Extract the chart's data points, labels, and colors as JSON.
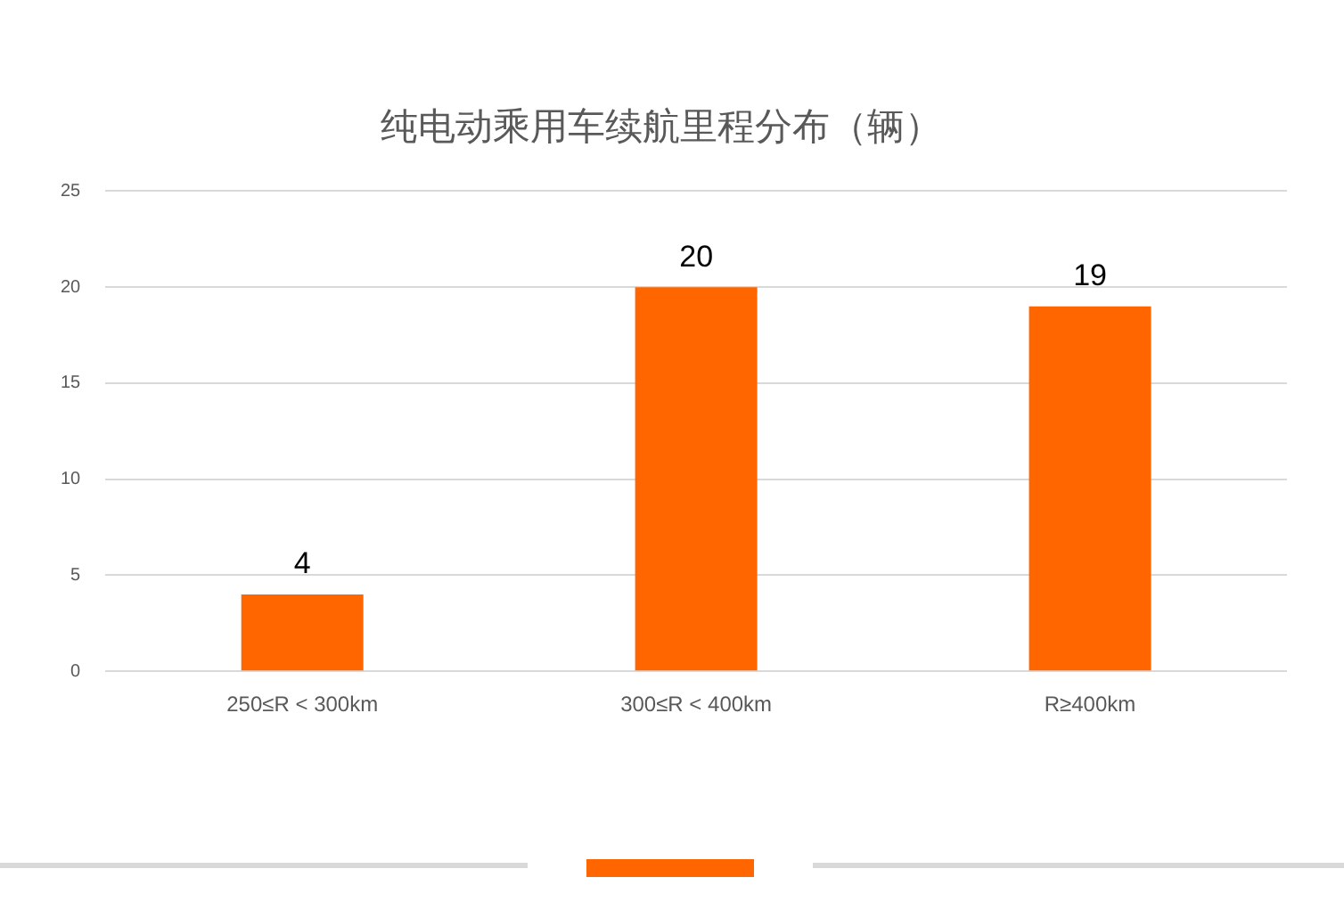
{
  "chart_data": {
    "type": "bar",
    "title": "纯电动乘用车续航里程分布（辆）",
    "categories": [
      "250≤R < 300km",
      "300≤R < 400km",
      "R≥400km"
    ],
    "values": [
      4,
      20,
      19
    ],
    "color": "#ff6600",
    "ylim": [
      0,
      25
    ],
    "yticks": [
      0,
      5,
      10,
      15,
      20,
      25
    ],
    "grid": "y",
    "legend": false,
    "data_labels": true
  }
}
